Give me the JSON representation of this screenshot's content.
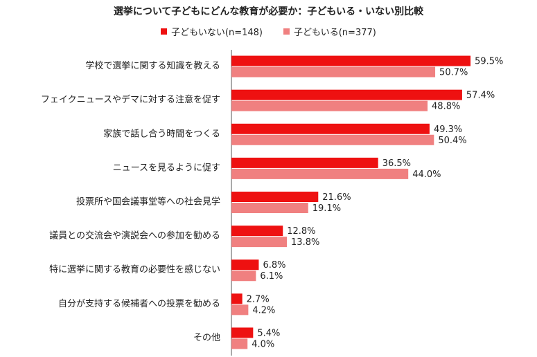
{
  "colors": {
    "series1": "#ee1111",
    "series2": "#f08080",
    "axis": "#555555"
  },
  "chart_data": {
    "type": "bar",
    "orientation": "horizontal",
    "title": "選挙について子どもにどんな教育が必要か：子どもいる・いない別比較",
    "legend_position": "top",
    "grid": false,
    "xlim": [
      0,
      70
    ],
    "categories": [
      "学校で選挙に関する知識を教える",
      "フェイクニュースやデマに対する注意を促す",
      "家族で話し合う時間をつくる",
      "ニュースを見るように促す",
      "投票所や国会議事堂等への社会見学",
      "議員との交流会や演説会への参加を勧める",
      "特に選挙に関する教育の必要性を感じない",
      "自分が支持する候補者への投票を勧める",
      "その他"
    ],
    "series": [
      {
        "name": "子どもいない(n=148)",
        "values": [
          59.5,
          57.4,
          49.3,
          36.5,
          21.6,
          12.8,
          6.8,
          2.7,
          5.4
        ],
        "labels": [
          "59.5%",
          "57.4%",
          "49.3%",
          "36.5%",
          "21.6%",
          "12.8%",
          "6.8%",
          "2.7%",
          "5.4%"
        ]
      },
      {
        "name": "子どもいる(n=377)",
        "values": [
          50.7,
          48.8,
          50.4,
          44.0,
          19.1,
          13.8,
          6.1,
          4.2,
          4.0
        ],
        "labels": [
          "50.7%",
          "48.8%",
          "50.4%",
          "44.0%",
          "19.1%",
          "13.8%",
          "6.1%",
          "4.2%",
          "4.0%"
        ]
      }
    ]
  }
}
